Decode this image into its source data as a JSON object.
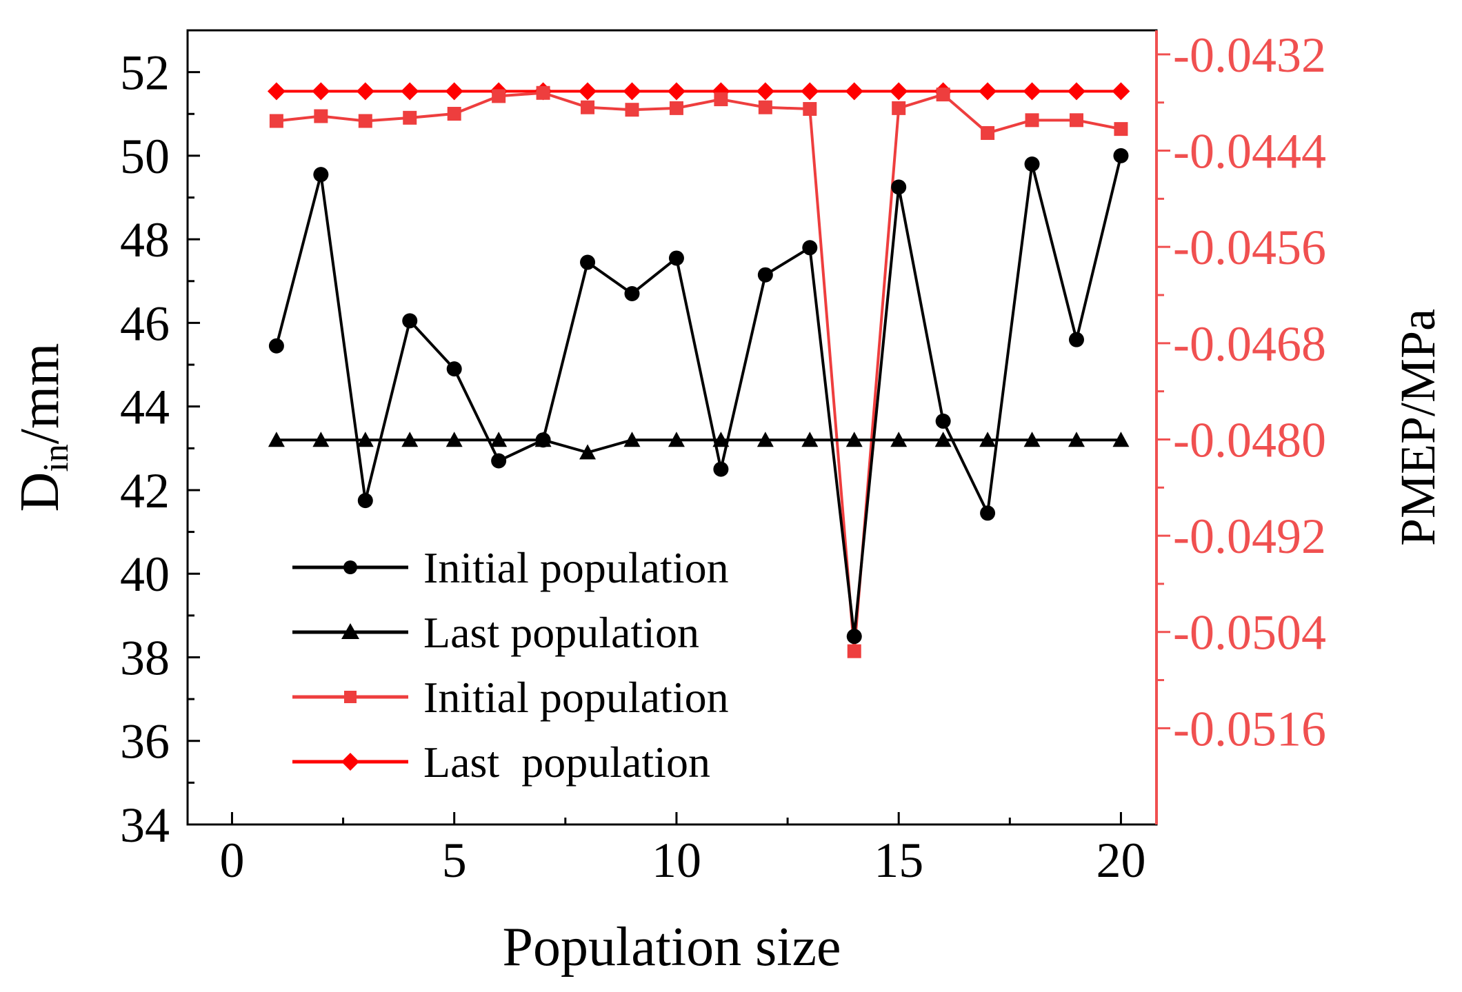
{
  "chart_data": {
    "type": "line",
    "xlabel": "Population size",
    "ylabel_main": "D",
    "ylabel_sub": "in",
    "ylabel_unit": "/mm",
    "y2label": "PMEP/MPa",
    "xlim": [
      -1,
      20.8
    ],
    "ylim": [
      34,
      53
    ],
    "y2lim": [
      -0.0528,
      -0.0429
    ],
    "xticks": [
      0,
      5,
      10,
      15,
      20
    ],
    "xtick_labels": [
      "0",
      "5",
      "10",
      "15",
      "20"
    ],
    "yticks": [
      34,
      36,
      38,
      40,
      42,
      44,
      46,
      48,
      50,
      52
    ],
    "ytick_labels": [
      "34",
      "36",
      "38",
      "40",
      "42",
      "44",
      "46",
      "48",
      "50",
      "52"
    ],
    "y2ticks": [
      -0.0516,
      -0.0504,
      -0.0492,
      -0.048,
      -0.0468,
      -0.0456,
      -0.0444,
      -0.0432
    ],
    "y2tick_labels": [
      "-0.0516",
      "-0.0504",
      "-0.0492",
      "-0.0480",
      "-0.0468",
      "-0.0456",
      "-0.0444",
      "-0.0432"
    ],
    "x": [
      1,
      2,
      3,
      4,
      5,
      6,
      7,
      8,
      9,
      10,
      11,
      12,
      13,
      14,
      15,
      16,
      17,
      18,
      19,
      20
    ],
    "series": [
      {
        "name": "Initial population",
        "axis": "left",
        "color": "#000000",
        "marker": "circle",
        "values": [
          45.45,
          49.55,
          41.75,
          46.05,
          44.9,
          42.7,
          43.2,
          47.45,
          46.7,
          47.55,
          42.5,
          47.15,
          47.8,
          38.5,
          49.25,
          43.65,
          41.45,
          49.8,
          45.6,
          50.0
        ]
      },
      {
        "name": "Last population",
        "axis": "left",
        "color": "#000000",
        "marker": "triangle",
        "values": [
          43.2,
          43.2,
          43.2,
          43.2,
          43.2,
          43.2,
          43.2,
          42.9,
          43.2,
          43.2,
          43.2,
          43.2,
          43.2,
          43.2,
          43.2,
          43.2,
          43.2,
          43.2,
          43.2,
          43.2
        ]
      },
      {
        "name": "Initial population",
        "axis": "right",
        "color": "#ee3e3e",
        "marker": "square",
        "values": [
          -0.04403,
          -0.04397,
          -0.04403,
          -0.04399,
          -0.04394,
          -0.04372,
          -0.04368,
          -0.04386,
          -0.04389,
          -0.04387,
          -0.04376,
          -0.04386,
          -0.04388,
          -0.05064,
          -0.04387,
          -0.0437,
          -0.04418,
          -0.04402,
          -0.04402,
          -0.04413
        ]
      },
      {
        "name": "Last  population",
        "axis": "right",
        "color": "#ff0000",
        "marker": "diamond",
        "values": [
          -0.04366,
          -0.04366,
          -0.04366,
          -0.04366,
          -0.04366,
          -0.04366,
          -0.04366,
          -0.04366,
          -0.04366,
          -0.04366,
          -0.04366,
          -0.04366,
          -0.04366,
          -0.04366,
          -0.04366,
          -0.04366,
          -0.04366,
          -0.04366,
          -0.04366,
          -0.04366
        ]
      }
    ],
    "legend_position": "lower-left",
    "right_axis_color": "#f05050"
  }
}
